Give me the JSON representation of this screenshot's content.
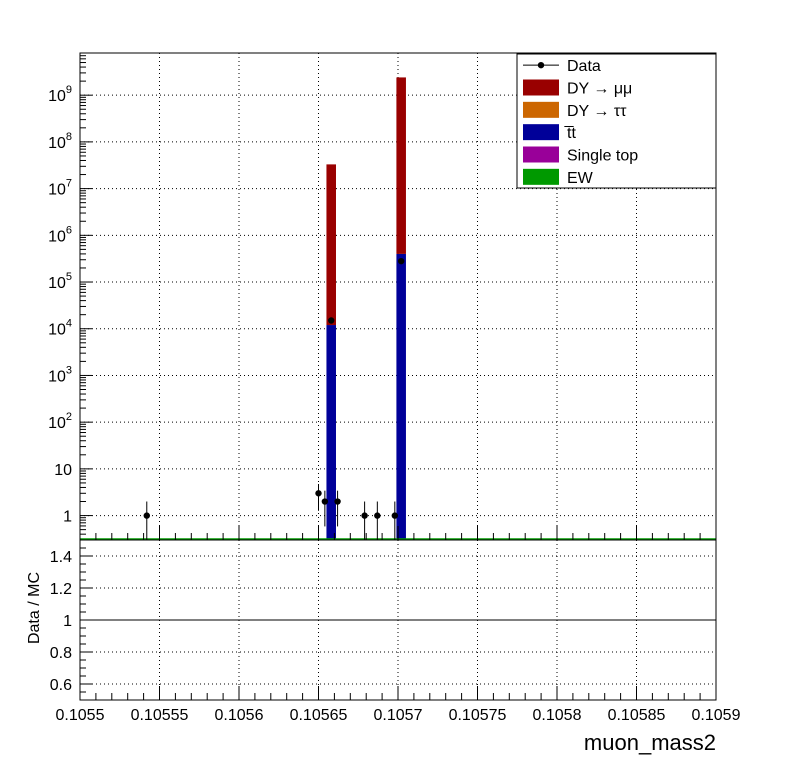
{
  "chart_data": {
    "type": "bar",
    "xlabel": "muon_mass2",
    "xlim": [
      0.1055,
      0.1059
    ],
    "x_ticks": [
      "0.1055",
      "0.10555",
      "0.1056",
      "0.10565",
      "0.1057",
      "0.10575",
      "0.1058",
      "0.10585",
      "0.1059"
    ],
    "x_tick_values": [
      0.1055,
      0.10555,
      0.1056,
      0.10565,
      0.1057,
      0.10575,
      0.1058,
      0.10585,
      0.1059
    ],
    "main": {
      "ylabel": "",
      "scale": "log",
      "ylim": [
        0.3,
        8000000000
      ],
      "y_ticks": [
        "1",
        "10",
        "10^2",
        "10^3",
        "10^4",
        "10^5",
        "10^6",
        "10^7",
        "10^8",
        "10^9"
      ],
      "y_tick_values": [
        1,
        10,
        100,
        1000,
        10000,
        100000,
        1000000,
        10000000,
        100000000,
        1000000000
      ],
      "grid": true,
      "stack": [
        {
          "name": "t̅t",
          "color": "#000099",
          "bins": [
            {
              "x0": 0.105655,
              "x1": 0.105661,
              "value": 12000
            },
            {
              "x0": 0.105699,
              "x1": 0.105705,
              "value": 400000
            }
          ]
        },
        {
          "name": "DY → μμ",
          "color": "#990000",
          "bins": [
            {
              "x0": 0.105655,
              "x1": 0.105661,
              "value": 33000000
            },
            {
              "x0": 0.105699,
              "x1": 0.105705,
              "value": 2400000000
            }
          ]
        }
      ],
      "data_points": [
        {
          "x": 0.105542,
          "y": 1
        },
        {
          "x": 0.10565,
          "y": 3
        },
        {
          "x": 0.105654,
          "y": 2
        },
        {
          "x": 0.105658,
          "y": 15000
        },
        {
          "x": 0.105662,
          "y": 2
        },
        {
          "x": 0.105679,
          "y": 1
        },
        {
          "x": 0.105687,
          "y": 1
        },
        {
          "x": 0.105698,
          "y": 1
        },
        {
          "x": 0.105702,
          "y": 280000
        }
      ]
    },
    "ratio": {
      "ylabel": "Data / MC",
      "ylim": [
        0.5,
        1.5
      ],
      "y_ticks": [
        "0.6",
        "0.8",
        "1",
        "1.2",
        "1.4"
      ],
      "y_tick_values": [
        0.6,
        0.8,
        1,
        1.2,
        1.4
      ],
      "reference": 1,
      "grid": true
    },
    "legend": {
      "placement": "top-right",
      "entries": [
        {
          "label": "Data",
          "kind": "marker",
          "color": "#000000"
        },
        {
          "label": "DY → μμ",
          "kind": "fill",
          "color": "#990000"
        },
        {
          "label": "DY → ττ",
          "kind": "fill",
          "color": "#cc6600"
        },
        {
          "label": "t̅t",
          "kind": "fill",
          "color": "#000099"
        },
        {
          "label": "Single top",
          "kind": "fill",
          "color": "#990099"
        },
        {
          "label": "EW",
          "kind": "fill",
          "color": "#009900"
        }
      ]
    }
  }
}
